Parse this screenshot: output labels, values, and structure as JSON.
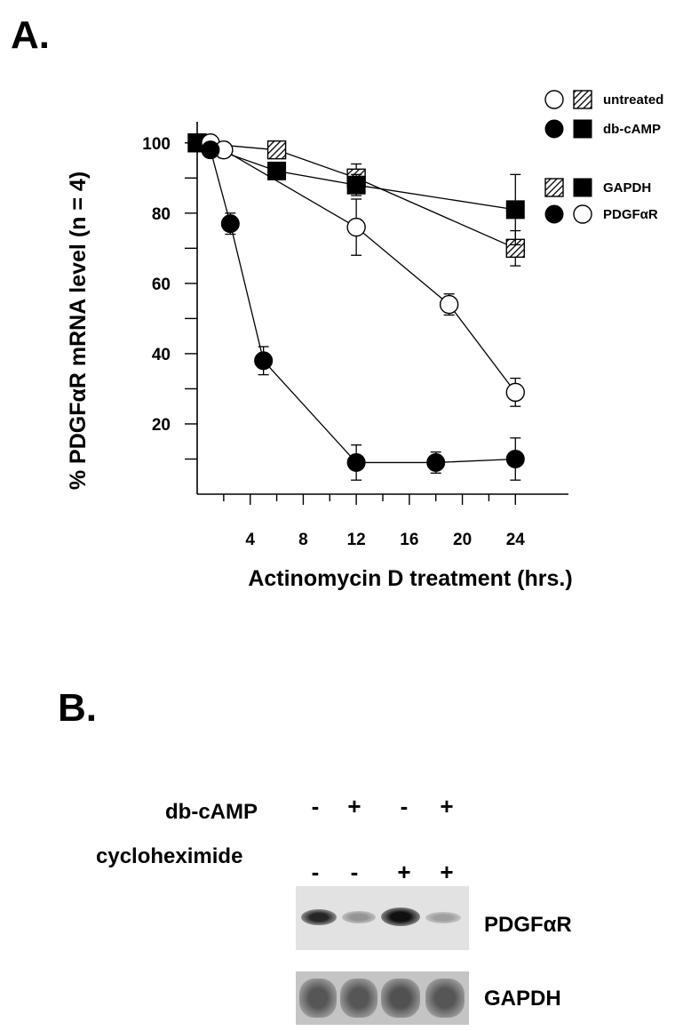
{
  "panel_a_label": "A.",
  "panel_b_label": "B.",
  "chart_data": {
    "type": "line",
    "title": "",
    "xlabel": "Actinomycin D treatment (hrs.)",
    "ylabel": "% PDGFαR mRNA level (n = 4)",
    "xlim": [
      0,
      28
    ],
    "ylim": [
      0,
      105
    ],
    "x_ticks": [
      4,
      8,
      12,
      16,
      20,
      24
    ],
    "y_ticks": [
      20,
      40,
      60,
      80,
      100
    ],
    "grid": false,
    "legend_position": "top-right",
    "legend": {
      "treatment": [
        {
          "label": "untreated",
          "symbols": [
            "open-circle",
            "hatched-square"
          ]
        },
        {
          "label": "db-cAMP",
          "symbols": [
            "filled-circle",
            "filled-square"
          ]
        }
      ],
      "gene": [
        {
          "label": "GAPDH",
          "symbols": [
            "hatched-square",
            "filled-square"
          ]
        },
        {
          "label": "PDGFαR",
          "symbols": [
            "filled-circle",
            "open-circle"
          ]
        }
      ]
    },
    "series": [
      {
        "marker": "hatched-square",
        "x": [
          0,
          6,
          12,
          24
        ],
        "y": [
          100,
          98,
          90,
          70
        ],
        "err": [
          2,
          2,
          4,
          5
        ]
      },
      {
        "marker": "filled-square",
        "x": [
          0,
          6,
          12,
          24
        ],
        "y": [
          100,
          92,
          88,
          81
        ],
        "err": [
          1,
          2,
          3,
          10
        ]
      },
      {
        "marker": "open-circle",
        "x": [
          1,
          2,
          12,
          19,
          24
        ],
        "y": [
          100,
          98,
          76,
          54,
          29
        ],
        "err": [
          1,
          1,
          8,
          3,
          4
        ]
      },
      {
        "marker": "filled-circle",
        "x": [
          1,
          2.5,
          5,
          12,
          18,
          24
        ],
        "y": [
          98,
          77,
          38,
          9,
          9,
          10
        ],
        "err": [
          1,
          3,
          4,
          5,
          3,
          6
        ]
      }
    ]
  },
  "blot": {
    "row1_label": "db-cAMP",
    "row2_label": "cycloheximide",
    "db_camp_signs": [
      "-",
      "+",
      "-",
      "+"
    ],
    "cycloheximide_signs": [
      "-",
      "-",
      "+",
      "+"
    ],
    "band1_label": "PDGFαR",
    "band2_label": "GAPDH",
    "pdgf_band_intensity": [
      0.85,
      0.35,
      0.95,
      0.3
    ],
    "gapdh_band_intensity": [
      0.75,
      0.75,
      0.78,
      0.75
    ]
  }
}
